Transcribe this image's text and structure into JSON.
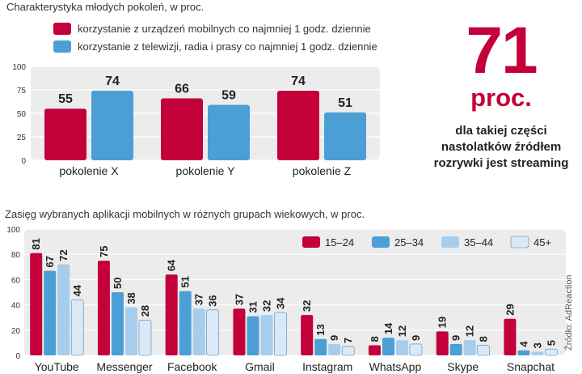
{
  "chart1": {
    "caption": "Charakterystyka młodych pokoleń, w proc.",
    "legend": [
      {
        "label": "korzystanie z urządzeń mobilnych co najmniej 1 godz. dziennie",
        "color": "#c4003a"
      },
      {
        "label": "korzystanie z telewizji, radia i prasy co najmniej 1 godz. dziennie",
        "color": "#4b9fd5"
      }
    ]
  },
  "highlight": {
    "number": "71",
    "unit": "proc.",
    "description": [
      "dla takiej części",
      "nastolatków źródłem",
      "rozrywki jest streaming"
    ]
  },
  "chart2": {
    "caption": "Zasięg wybranych aplikacji mobilnych w różnych grupach wiekowych, w proc."
  },
  "source": "Źródło: AdReaction",
  "chart_data": [
    {
      "type": "bar",
      "title": "Charakterystyka młodych pokoleń, w proc.",
      "categories": [
        "pokolenie X",
        "pokolenie Y",
        "pokolenie Z"
      ],
      "series": [
        {
          "name": "korzystanie z urządzeń mobilnych co najmniej 1 godz. dziennie",
          "values": [
            55,
            66,
            74
          ],
          "color": "#c4003a"
        },
        {
          "name": "korzystanie z telewizji, radia i prasy co najmniej 1 godz. dziennie",
          "values": [
            74,
            59,
            51
          ],
          "color": "#4b9fd5"
        }
      ],
      "ylim": [
        0,
        100
      ],
      "yticks": [
        0,
        25,
        50,
        75,
        100
      ],
      "grid": true,
      "legend_position": "top"
    },
    {
      "type": "bar",
      "title": "Zasięg wybranych aplikacji mobilnych w różnych grupach wiekowych, w proc.",
      "categories": [
        "YouTube",
        "Messenger",
        "Facebook",
        "Gmail",
        "Instagram",
        "WhatsApp",
        "Skype",
        "Snapchat"
      ],
      "series": [
        {
          "name": "15–24",
          "values": [
            81,
            75,
            64,
            37,
            32,
            8,
            19,
            29
          ],
          "color": "#c4003a"
        },
        {
          "name": "25–34",
          "values": [
            67,
            50,
            51,
            31,
            13,
            14,
            9,
            4
          ],
          "color": "#4b9fd5"
        },
        {
          "name": "35–44",
          "values": [
            72,
            38,
            37,
            32,
            9,
            12,
            12,
            3
          ],
          "color": "#a6cdec"
        },
        {
          "name": "45+",
          "values": [
            44,
            28,
            36,
            34,
            7,
            9,
            8,
            5
          ],
          "color": "#dbe9f6"
        }
      ],
      "ylim": [
        0,
        100
      ],
      "yticks": [
        0,
        20,
        40,
        60,
        80,
        100
      ],
      "grid": true,
      "legend_position": "top-right"
    }
  ]
}
